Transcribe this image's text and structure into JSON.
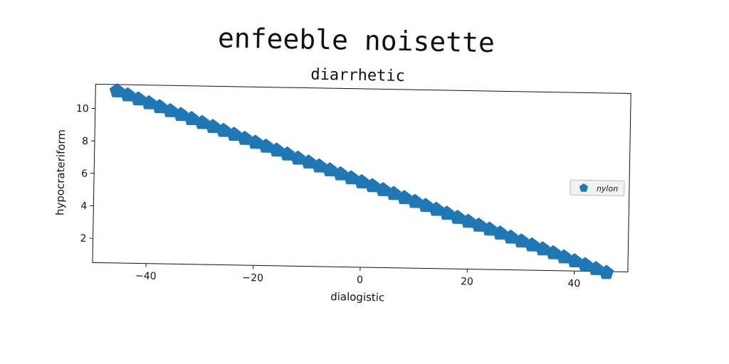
{
  "chart_data": {
    "type": "scatter",
    "title": "enfeeble noisette",
    "subtitle": "diarrhetic",
    "xlabel": "dialogistic",
    "ylabel": "hypocrateriform",
    "xlim": [
      -50,
      50
    ],
    "ylim": [
      0.5,
      11.5
    ],
    "xticks": [
      -40,
      -20,
      0,
      20,
      40
    ],
    "yticks": [
      2,
      4,
      6,
      8,
      10
    ],
    "grid": false,
    "legend_position": "right",
    "series": [
      {
        "name": "nylon",
        "color": "#1f77b4",
        "marker": "pentagon",
        "x": [
          -46,
          -44,
          -42,
          -40,
          -38,
          -36,
          -34,
          -32,
          -30,
          -28,
          -26,
          -24,
          -22,
          -20,
          -18,
          -16,
          -14,
          -12,
          -10,
          -8,
          -6,
          -4,
          -2,
          0,
          2,
          4,
          6,
          8,
          10,
          12,
          14,
          16,
          18,
          20,
          22,
          24,
          26,
          28,
          30,
          32,
          34,
          36,
          38,
          40,
          42,
          44,
          46
        ],
        "y": [
          11.1,
          10.87,
          10.63,
          10.4,
          10.17,
          9.94,
          9.71,
          9.47,
          9.24,
          9.01,
          8.78,
          8.55,
          8.31,
          8.08,
          7.85,
          7.62,
          7.39,
          7.15,
          6.92,
          6.69,
          6.46,
          6.23,
          5.99,
          5.76,
          5.53,
          5.3,
          5.07,
          4.83,
          4.6,
          4.37,
          4.14,
          3.91,
          3.67,
          3.44,
          3.21,
          2.98,
          2.75,
          2.51,
          2.28,
          2.05,
          1.82,
          1.59,
          1.35,
          1.12,
          0.89,
          0.66,
          0.43
        ]
      }
    ]
  }
}
